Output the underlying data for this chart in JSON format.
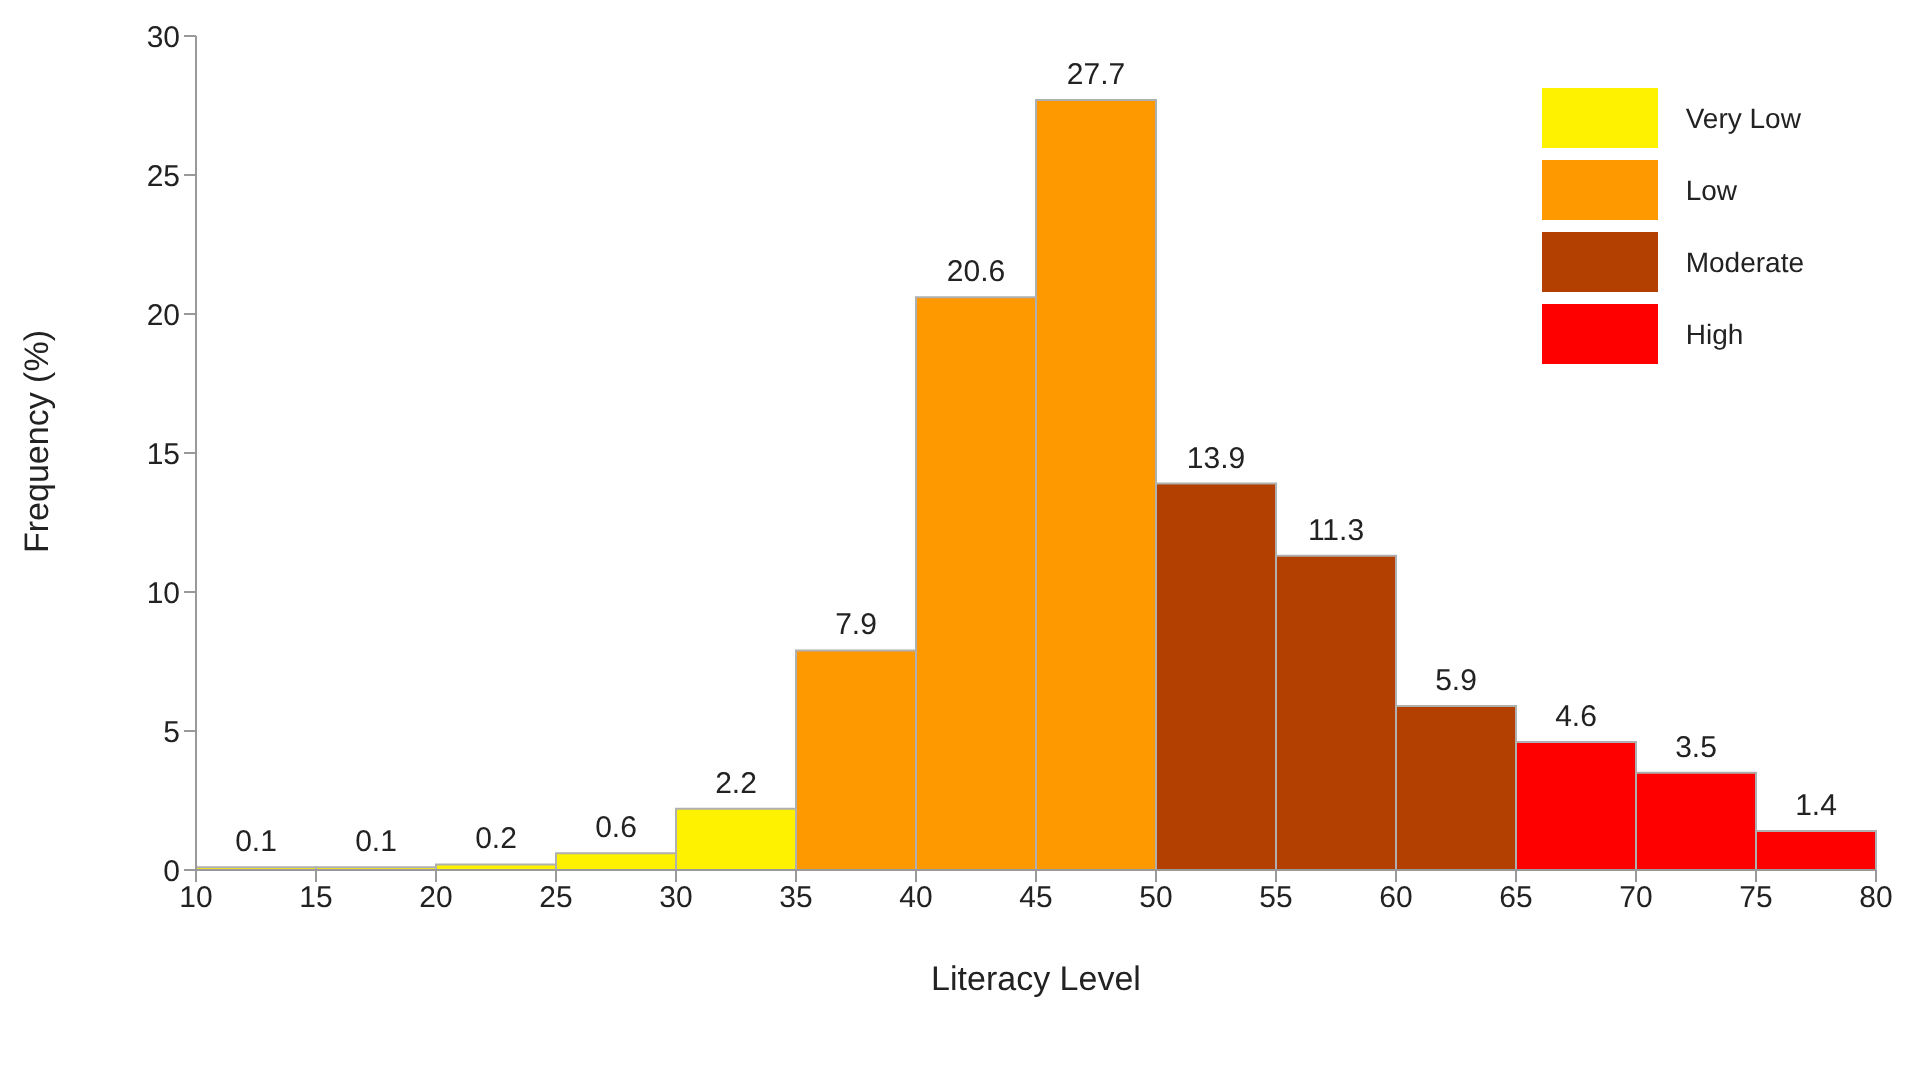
{
  "chart_data": {
    "type": "histogram",
    "xlabel": "Literacy Level",
    "ylabel": "Frequency (%)",
    "bins": [
      10,
      15,
      20,
      25,
      30,
      35,
      40,
      45,
      50,
      55,
      60,
      65,
      70,
      75,
      80
    ],
    "series": [
      {
        "name": "Very Low",
        "color": "#fff200",
        "values": [
          0.1,
          0.1,
          0.2,
          0.6,
          2.2,
          null,
          null,
          null,
          null,
          null,
          null,
          null,
          null,
          null
        ]
      },
      {
        "name": "Low",
        "color": "#ff9900",
        "values": [
          null,
          null,
          null,
          null,
          null,
          7.9,
          20.6,
          27.7,
          null,
          null,
          null,
          null,
          null,
          null
        ]
      },
      {
        "name": "Moderate",
        "color": "#b34000",
        "values": [
          null,
          null,
          null,
          null,
          null,
          null,
          null,
          null,
          13.9,
          11.3,
          5.9,
          null,
          null,
          null
        ]
      },
      {
        "name": "High",
        "color": "#ff0000",
        "values": [
          null,
          null,
          null,
          null,
          null,
          null,
          null,
          null,
          null,
          null,
          null,
          4.6,
          3.5,
          1.4
        ]
      }
    ],
    "xlim": [
      10,
      80
    ],
    "xticks": [
      10,
      15,
      20,
      25,
      30,
      35,
      40,
      45,
      50,
      55,
      60,
      65,
      70,
      75,
      80
    ],
    "ylim": [
      0,
      30
    ],
    "yticks": [
      0,
      5,
      10,
      15,
      20,
      25,
      30
    ],
    "data_labels": true,
    "grid": false,
    "legend": "top right"
  }
}
